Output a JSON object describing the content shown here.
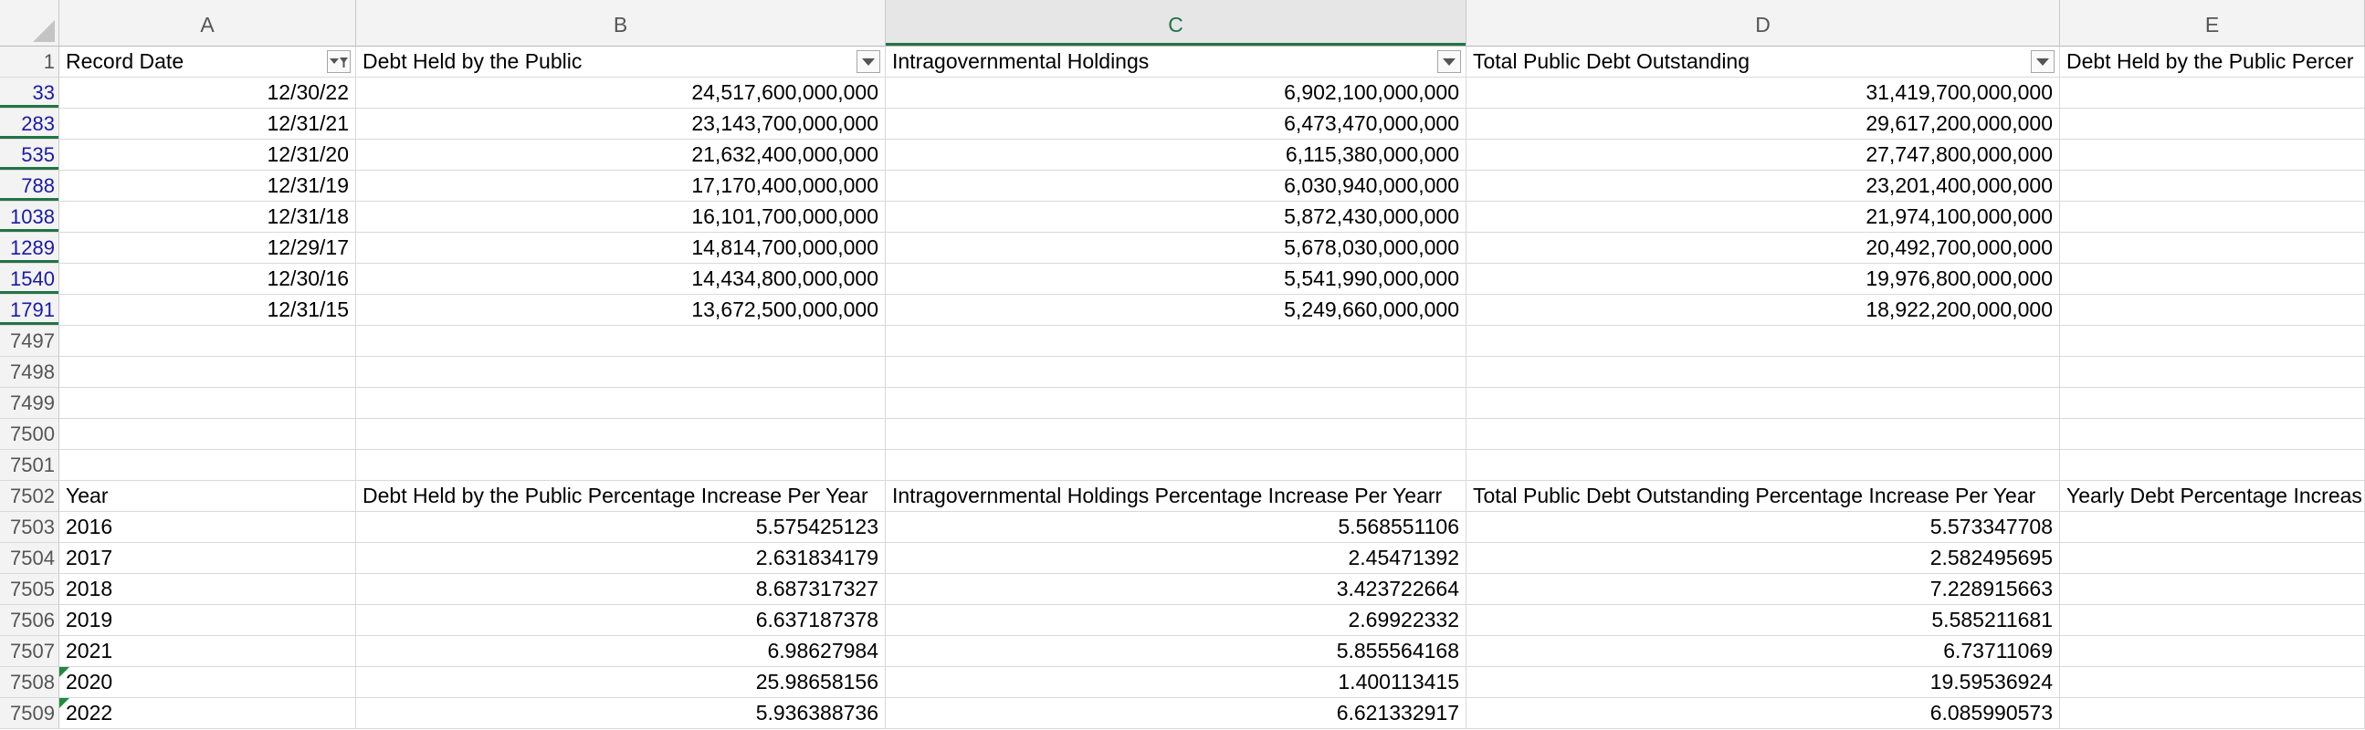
{
  "columns": [
    "A",
    "B",
    "C",
    "D",
    "E"
  ],
  "selected_column": "C",
  "header_row": {
    "row_number": "1",
    "cells": [
      "Record Date",
      "Debt Held by the Public",
      "Intragovernmental Holdings",
      "Total Public Debt Outstanding",
      "Debt Held by the Public Percer"
    ]
  },
  "data_rows": [
    {
      "row": "33",
      "date": "12/30/22",
      "public": "24,517,600,000,000",
      "intragov": "6,902,100,000,000",
      "total": "31,419,700,000,000"
    },
    {
      "row": "283",
      "date": "12/31/21",
      "public": "23,143,700,000,000",
      "intragov": "6,473,470,000,000",
      "total": "29,617,200,000,000"
    },
    {
      "row": "535",
      "date": "12/31/20",
      "public": "21,632,400,000,000",
      "intragov": "6,115,380,000,000",
      "total": "27,747,800,000,000"
    },
    {
      "row": "788",
      "date": "12/31/19",
      "public": "17,170,400,000,000",
      "intragov": "6,030,940,000,000",
      "total": "23,201,400,000,000"
    },
    {
      "row": "1038",
      "date": "12/31/18",
      "public": "16,101,700,000,000",
      "intragov": "5,872,430,000,000",
      "total": "21,974,100,000,000"
    },
    {
      "row": "1289",
      "date": "12/29/17",
      "public": "14,814,700,000,000",
      "intragov": "5,678,030,000,000",
      "total": "20,492,700,000,000"
    },
    {
      "row": "1540",
      "date": "12/30/16",
      "public": "14,434,800,000,000",
      "intragov": "5,541,990,000,000",
      "total": "19,976,800,000,000"
    },
    {
      "row": "1791",
      "date": "12/31/15",
      "public": "13,672,500,000,000",
      "intragov": "5,249,660,000,000",
      "total": "18,922,200,000,000"
    }
  ],
  "empty_rows": [
    "7497",
    "7498",
    "7499",
    "7500",
    "7501"
  ],
  "pct_header": {
    "row": "7502",
    "cells": [
      "Year",
      "Debt Held by the Public Percentage Increase Per Year",
      "Intragovernmental Holdings Percentage Increase Per Yearr",
      "Total Public Debt Outstanding Percentage Increase Per Year",
      "Yearly Debt Percentage Increas"
    ]
  },
  "pct_rows": [
    {
      "row": "7503",
      "year": "2016",
      "public": "5.575425123",
      "intragov": "5.568551106",
      "total": "5.573347708",
      "flag": false
    },
    {
      "row": "7504",
      "year": "2017",
      "public": "2.631834179",
      "intragov": "2.45471392",
      "total": "2.582495695",
      "flag": false
    },
    {
      "row": "7505",
      "year": "2018",
      "public": "8.687317327",
      "intragov": "3.423722664",
      "total": "7.228915663",
      "flag": false
    },
    {
      "row": "7506",
      "year": "2019",
      "public": "6.637187378",
      "intragov": "2.69922332",
      "total": "5.585211681",
      "flag": false
    },
    {
      "row": "7507",
      "year": "2021",
      "public": "6.98627984",
      "intragov": "5.855564168",
      "total": "6.73711069",
      "flag": false
    },
    {
      "row": "7508",
      "year": "2020",
      "public": "25.98658156",
      "intragov": "1.400113415",
      "total": "19.59536924",
      "flag": true
    },
    {
      "row": "7509",
      "year": "2022",
      "public": "5.936388736",
      "intragov": "6.621332917",
      "total": "6.085990573",
      "flag": true
    }
  ],
  "colors": {
    "accent": "#217346",
    "filtered_row_number": "#1a1aa8",
    "error_flag": "#1e8c3a"
  }
}
